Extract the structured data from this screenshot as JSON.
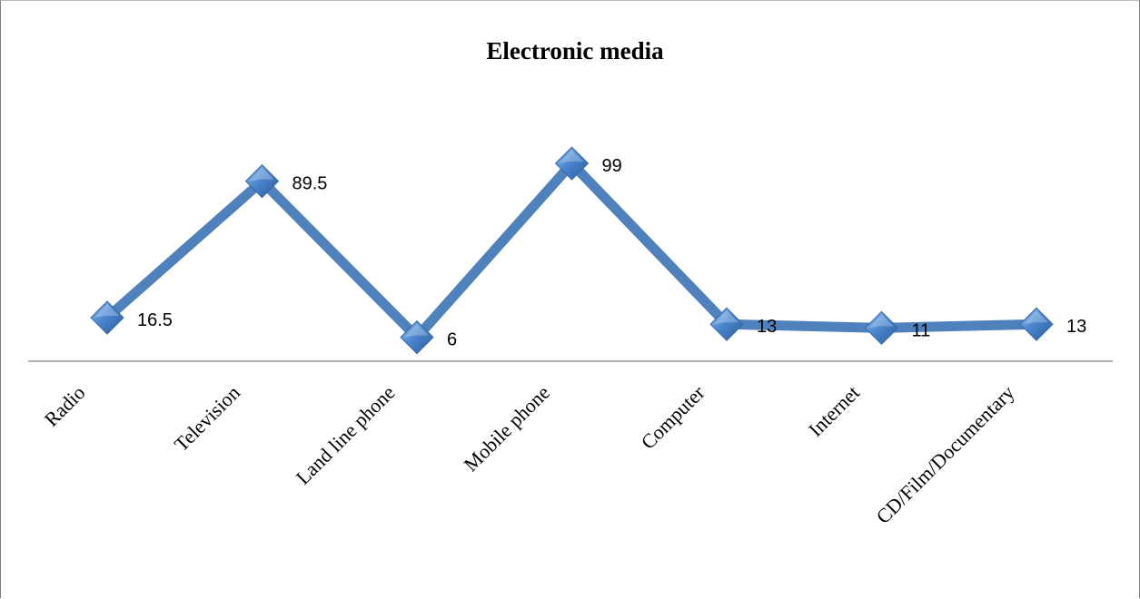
{
  "chart_data": {
    "type": "line",
    "title": "Electronic media",
    "xlabel": "",
    "ylabel": "",
    "categories": [
      "Radio",
      "Television",
      "Land line phone",
      "Mobile phone",
      "Computer",
      "Internet",
      "CD/Film/Documentary"
    ],
    "series": [
      {
        "values": [
          16.5,
          89.5,
          6,
          99,
          13,
          11,
          13
        ],
        "data_labels": [
          "16.5",
          "89.5",
          "6",
          "99",
          "13",
          "11",
          "13"
        ]
      }
    ],
    "ylim": [
      0,
      110
    ],
    "grid": false,
    "legend": "none",
    "colors": {
      "line": "#4f81bd",
      "marker": "#4a7ebb",
      "axis": "#7f7f7f"
    }
  }
}
